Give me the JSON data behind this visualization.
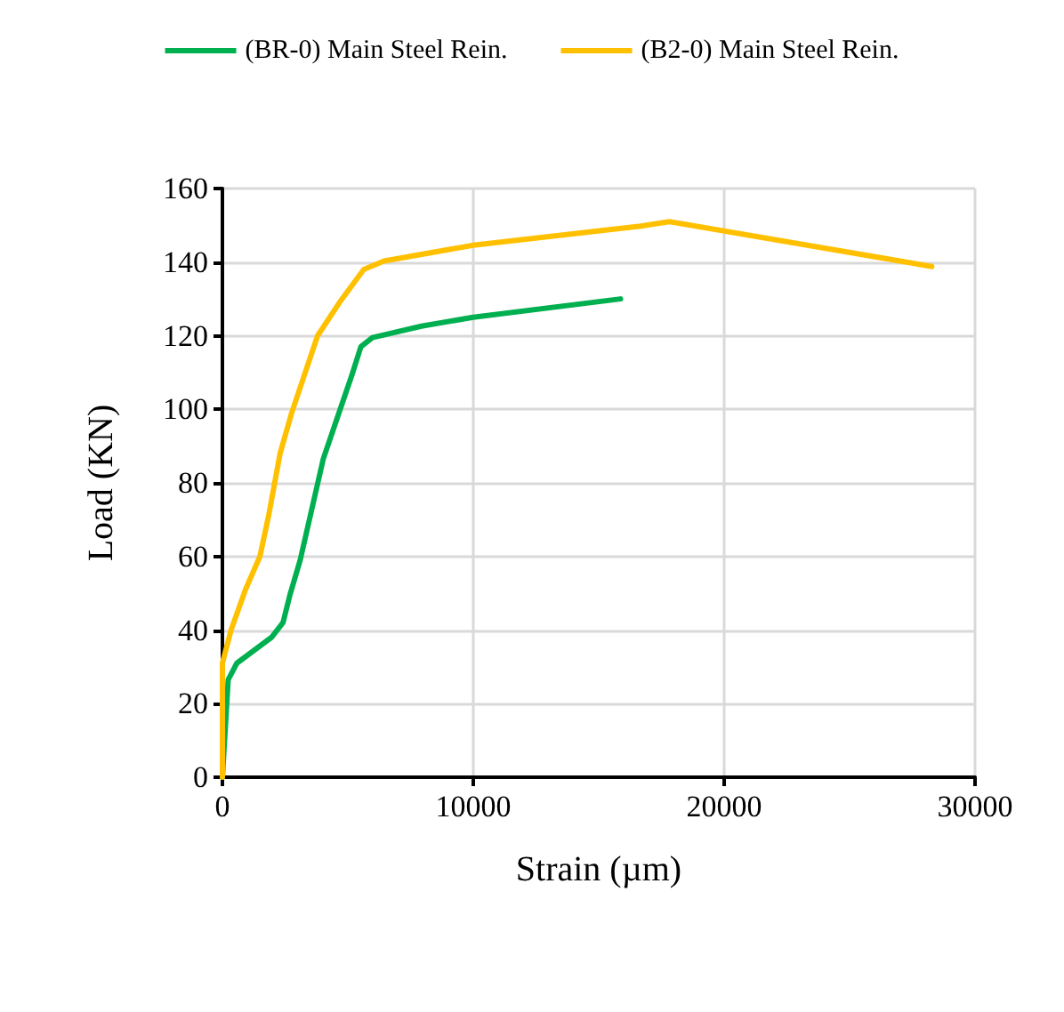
{
  "chart_data": {
    "type": "line",
    "xlabel": "Strain (µm)",
    "ylabel": "Load (KN)",
    "xlim": [
      0,
      30000
    ],
    "xticks": [
      0,
      10000,
      20000,
      30000
    ],
    "ylim": [
      0,
      160
    ],
    "yticks": [
      0,
      20,
      40,
      60,
      80,
      100,
      120,
      140,
      160
    ],
    "grid": true,
    "legend": "top",
    "marker": "none",
    "line_style": "solid",
    "series": [
      {
        "name": "(BR-0) Main Steel Rein.",
        "color": "#00b050",
        "x": [
          0,
          230,
          575,
          1955,
          2415,
          2690,
          3100,
          4020,
          4480,
          5170,
          5520,
          5980,
          7935,
          10000,
          15870
        ],
        "values": [
          0,
          26.5,
          31,
          38,
          42,
          49.5,
          59,
          86.5,
          95.7,
          109.5,
          117,
          119.5,
          122.6,
          125,
          130
        ]
      },
      {
        "name": "(B2-0) Main Steel Rein.",
        "color": "#ffc000",
        "x": [
          0,
          0,
          345,
          920,
          1495,
          1840,
          2300,
          2760,
          3795,
          4715,
          5635,
          6440,
          10000,
          16675,
          17820,
          28280
        ],
        "values": [
          0,
          31,
          40,
          51,
          60,
          71,
          88,
          99,
          120,
          129.5,
          138,
          140.3,
          144.6,
          149.8,
          151,
          138.8
        ]
      }
    ]
  }
}
